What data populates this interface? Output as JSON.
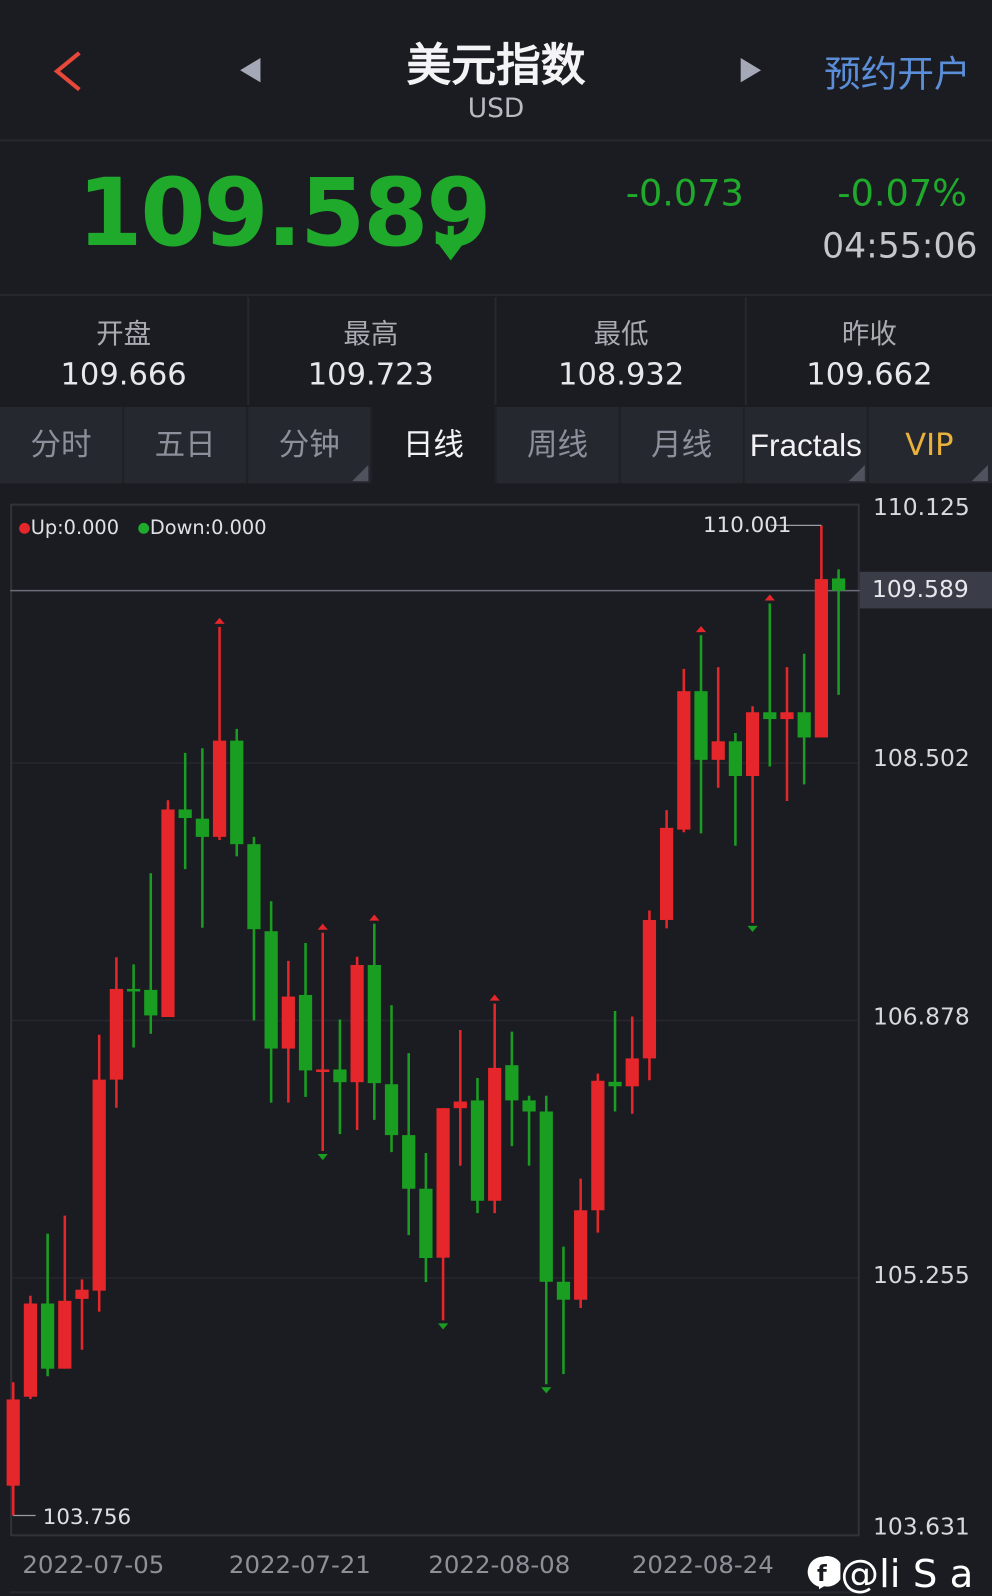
{
  "header": {
    "title": "美元指数",
    "subtitle": "USD",
    "action": "预约开户"
  },
  "quote": {
    "price": "109.589",
    "change": "-0.073",
    "change_pct": "-0.07%",
    "time": "04:55:06",
    "direction": "down"
  },
  "stats": [
    {
      "label": "开盘",
      "value": "109.666"
    },
    {
      "label": "最高",
      "value": "109.723"
    },
    {
      "label": "最低",
      "value": "108.932"
    },
    {
      "label": "昨收",
      "value": "109.662"
    }
  ],
  "tabs": [
    {
      "label": "分时"
    },
    {
      "label": "五日"
    },
    {
      "label": "分钟",
      "dropdown": true
    },
    {
      "label": "日线",
      "active": true
    },
    {
      "label": "周线"
    },
    {
      "label": "月线"
    },
    {
      "label": "Fractals",
      "dropdown": true
    },
    {
      "label": "VIP",
      "dropdown": true
    }
  ],
  "colors": {
    "up": "#e5262a",
    "down": "#1a9e22",
    "accent": "#5b8ed8",
    "vip": "#e9b23c",
    "background": "#1b1c21"
  },
  "watermark": "@li S a",
  "chart_data": {
    "type": "candlestick",
    "legend": {
      "up": "Up:0.000",
      "down": "Down:0.000"
    },
    "ylim": [
      103.631,
      110.125
    ],
    "y_ticks": [
      "110.125",
      "108.502",
      "106.878",
      "105.255",
      "103.631"
    ],
    "current_price": "109.589",
    "max_label": "110.001",
    "min_label": "103.756",
    "x_labels": [
      {
        "label": "2022-07-05",
        "index": 5
      },
      {
        "label": "2022-07-21",
        "index": 17
      },
      {
        "label": "2022-08-08",
        "index": 29
      },
      {
        "label": "2022-08-24",
        "index": 41
      }
    ],
    "ohlc": [
      [
        103.944,
        104.596,
        103.756,
        104.488
      ],
      [
        104.505,
        105.142,
        104.49,
        105.093
      ],
      [
        105.093,
        105.534,
        104.634,
        104.682
      ],
      [
        104.682,
        105.647,
        104.682,
        105.11
      ],
      [
        105.122,
        105.245,
        104.801,
        105.18
      ],
      [
        105.174,
        106.788,
        105.042,
        106.505
      ],
      [
        106.505,
        107.277,
        106.328,
        107.077
      ],
      [
        107.077,
        107.232,
        106.708,
        107.068
      ],
      [
        107.071,
        107.807,
        106.794,
        106.91
      ],
      [
        106.9,
        108.267,
        106.9,
        108.209
      ],
      [
        108.209,
        108.566,
        107.833,
        108.155
      ],
      [
        108.151,
        108.595,
        107.463,
        108.036
      ],
      [
        108.036,
        109.36,
        108.016,
        108.643
      ],
      [
        108.643,
        108.717,
        107.913,
        107.99
      ],
      [
        107.99,
        108.036,
        106.878,
        107.454
      ],
      [
        107.441,
        107.63,
        106.36,
        106.701
      ],
      [
        106.701,
        107.254,
        106.36,
        107.029
      ],
      [
        107.039,
        107.367,
        106.396,
        106.563
      ],
      [
        106.556,
        107.431,
        106.055,
        106.569
      ],
      [
        106.569,
        106.884,
        106.161,
        106.489
      ],
      [
        106.489,
        107.28,
        106.187,
        107.228
      ],
      [
        107.228,
        107.489,
        106.251,
        106.483
      ],
      [
        106.476,
        106.974,
        106.048,
        106.155
      ],
      [
        106.155,
        106.672,
        105.524,
        105.817
      ],
      [
        105.817,
        106.042,
        105.228,
        105.38
      ],
      [
        105.382,
        106.325,
        104.987,
        106.325
      ],
      [
        106.325,
        106.818,
        105.962,
        106.367
      ],
      [
        106.374,
        106.515,
        105.663,
        105.741
      ],
      [
        105.741,
        106.984,
        105.663,
        106.579
      ],
      [
        106.596,
        106.808,
        106.086,
        106.374
      ],
      [
        106.374,
        106.403,
        105.963,
        106.304
      ],
      [
        106.304,
        106.403,
        104.584,
        105.23
      ],
      [
        105.23,
        105.452,
        104.648,
        105.117
      ],
      [
        105.117,
        105.881,
        105.065,
        105.681
      ],
      [
        105.681,
        106.543,
        105.54,
        106.498
      ],
      [
        106.491,
        106.938,
        106.304,
        106.463
      ],
      [
        106.463,
        106.903,
        106.29,
        106.639
      ],
      [
        106.639,
        107.572,
        106.501,
        107.512
      ],
      [
        107.512,
        108.205,
        107.459,
        108.093
      ],
      [
        108.082,
        109.096,
        108.065,
        108.955
      ],
      [
        108.955,
        109.308,
        108.058,
        108.522
      ],
      [
        108.522,
        109.107,
        108.346,
        108.639
      ],
      [
        108.639,
        108.691,
        107.98,
        108.42
      ],
      [
        108.42,
        108.86,
        107.494,
        108.822
      ],
      [
        108.822,
        109.508,
        108.48,
        108.779
      ],
      [
        108.779,
        109.107,
        108.262,
        108.822
      ],
      [
        108.822,
        109.191,
        108.367,
        108.663
      ],
      [
        108.663,
        110.001,
        108.663,
        109.662
      ],
      [
        109.666,
        109.723,
        108.932,
        109.589
      ]
    ],
    "fractals": {
      "up": [
        12,
        18,
        21,
        28,
        40,
        44
      ],
      "down": [
        18,
        25,
        31,
        43
      ]
    },
    "grid": true
  }
}
